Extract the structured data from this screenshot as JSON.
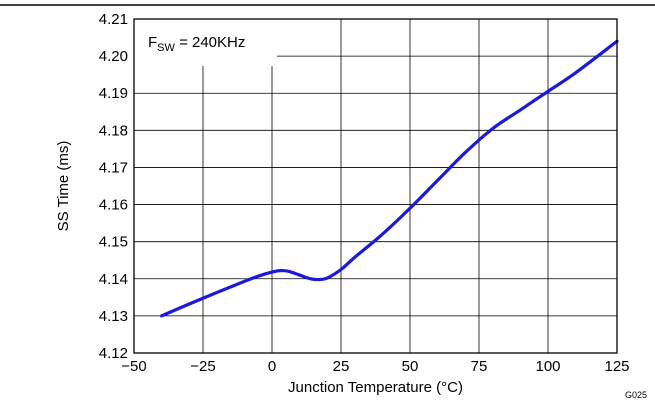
{
  "chart_data": {
    "type": "line",
    "title": "",
    "xlabel": "Junction Temperature (°C)",
    "ylabel": "SS Time (ms)",
    "xlim": [
      -50,
      125
    ],
    "ylim": [
      4.12,
      4.21
    ],
    "x_ticks": [
      -50,
      -25,
      0,
      25,
      50,
      75,
      100,
      125
    ],
    "y_ticks": [
      4.12,
      4.13,
      4.14,
      4.15,
      4.16,
      4.17,
      4.18,
      4.19,
      4.2,
      4.21
    ],
    "x_tick_labels": [
      "−50",
      "−25",
      "0",
      "25",
      "50",
      "75",
      "100",
      "125"
    ],
    "y_tick_labels": [
      "4.12",
      "4.13",
      "4.14",
      "4.15",
      "4.16",
      "4.17",
      "4.18",
      "4.19",
      "4.20",
      "4.21"
    ],
    "grid": true,
    "annotation": {
      "prefix": "F",
      "subscript": "SW",
      "suffix": " = 240KHz"
    },
    "figure_code": "G025",
    "series": [
      {
        "color": "#1a1adb",
        "x": [
          -40,
          -30,
          -20,
          -10,
          -5,
          0,
          3,
          6,
          10,
          14,
          17,
          20,
          25,
          30,
          40,
          50,
          60,
          70,
          80,
          90,
          100,
          110,
          125
        ],
        "y": [
          4.13,
          4.1332,
          4.1363,
          4.1393,
          4.1407,
          4.1418,
          4.1422,
          4.142,
          4.141,
          4.14,
          4.1398,
          4.1402,
          4.1425,
          4.1458,
          4.152,
          4.159,
          4.1665,
          4.174,
          4.1805,
          4.1855,
          4.1905,
          4.1955,
          4.204
        ]
      }
    ]
  }
}
